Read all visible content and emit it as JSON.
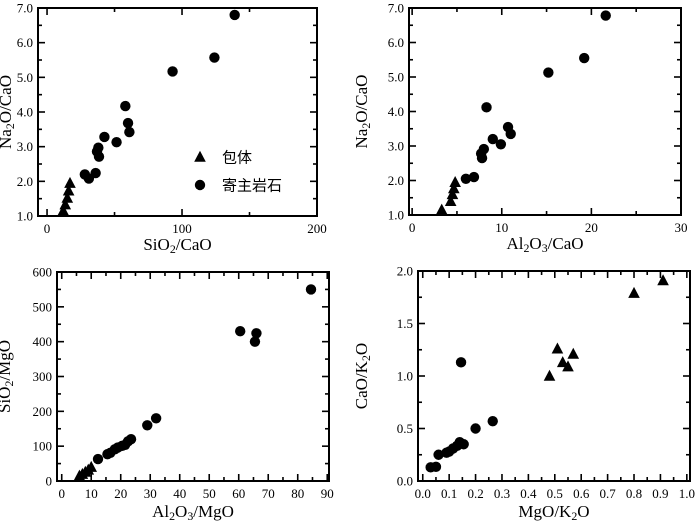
{
  "figure": {
    "background": "#ffffff",
    "marker_color": "#000000",
    "axis_color": "#000000"
  },
  "legend": {
    "position": "inside-top-left-panel",
    "items": [
      {
        "marker": "triangle",
        "label": "包体"
      },
      {
        "marker": "circle",
        "label": "寄主岩石"
      }
    ]
  },
  "chart_data": [
    {
      "id": "top-left",
      "type": "scatter",
      "xlabel": "SiO₂/CaO",
      "ylabel": "Na₂O/CaO",
      "xlim": [
        0,
        200
      ],
      "ylim": [
        1.0,
        7.0
      ],
      "grid": false,
      "legend": true,
      "x_ticks": {
        "values": [
          0,
          100,
          200
        ],
        "labels": [
          "0",
          "100",
          "200"
        ]
      },
      "x_minor_ticks": [
        50,
        150
      ],
      "y_ticks": {
        "values": [
          1,
          2,
          3,
          4,
          5,
          6,
          7
        ],
        "labels": [
          "1.0",
          "2.0",
          "3.0",
          "4.0",
          "5.0",
          "6.0",
          "7.0"
        ]
      },
      "y_minor_ticks": [
        1.5,
        2.5,
        3.5,
        4.5,
        5.5,
        6.5
      ],
      "series": [
        {
          "name": "包体",
          "marker": "triangle",
          "points": [
            [
              12,
              1.15
            ],
            [
              13.5,
              1.33
            ],
            [
              15,
              1.52
            ],
            [
              16,
              1.73
            ],
            [
              17,
              1.95
            ]
          ]
        },
        {
          "name": "寄主岩石",
          "marker": "circle",
          "points": [
            [
              28,
              2.2
            ],
            [
              31,
              2.08
            ],
            [
              36,
              2.24
            ],
            [
              37,
              2.86
            ],
            [
              38,
              2.97
            ],
            [
              38.5,
              2.71
            ],
            [
              42.5,
              3.28
            ],
            [
              51.5,
              3.13
            ],
            [
              58,
              4.17
            ],
            [
              60,
              3.68
            ],
            [
              61,
              3.42
            ],
            [
              93,
              5.17
            ],
            [
              124,
              5.57
            ],
            [
              139,
              6.8
            ]
          ]
        }
      ]
    },
    {
      "id": "top-right",
      "type": "scatter",
      "xlabel": "Al₂O₃/CaO",
      "ylabel": "Na₂O/CaO",
      "xlim": [
        0,
        30
      ],
      "ylim": [
        1.0,
        7.0
      ],
      "grid": false,
      "legend": false,
      "x_ticks": {
        "values": [
          0,
          10,
          20,
          30
        ],
        "labels": [
          "0",
          "10",
          "20",
          "30"
        ]
      },
      "x_minor_ticks": [
        5,
        15,
        25
      ],
      "y_ticks": {
        "values": [
          1,
          2,
          3,
          4,
          5,
          6,
          7
        ],
        "labels": [
          "1.0",
          "2.0",
          "3.0",
          "4.0",
          "5.0",
          "6.0",
          "7.0"
        ]
      },
      "y_minor_ticks": [
        1.5,
        2.5,
        3.5,
        4.5,
        5.5,
        6.5
      ],
      "series": [
        {
          "name": "包体",
          "marker": "triangle",
          "points": [
            [
              3.3,
              1.15
            ],
            [
              4.3,
              1.4
            ],
            [
              4.5,
              1.6
            ],
            [
              4.65,
              1.77
            ],
            [
              4.8,
              1.95
            ]
          ]
        },
        {
          "name": "寄主岩石",
          "marker": "circle",
          "points": [
            [
              6.0,
              2.05
            ],
            [
              6.9,
              2.1
            ],
            [
              7.7,
              2.78
            ],
            [
              7.8,
              2.65
            ],
            [
              8.0,
              2.91
            ],
            [
              8.3,
              4.12
            ],
            [
              9.0,
              3.2
            ],
            [
              9.9,
              3.05
            ],
            [
              10.7,
              3.55
            ],
            [
              11.0,
              3.35
            ],
            [
              15.2,
              5.13
            ],
            [
              19.2,
              5.55
            ],
            [
              21.6,
              6.78
            ]
          ]
        }
      ]
    },
    {
      "id": "bottom-left",
      "type": "scatter",
      "xlabel": "Al₂O₃/MgO",
      "ylabel": "SiO₂/MgO",
      "xlim": [
        0,
        90
      ],
      "ylim": [
        0,
        600
      ],
      "grid": false,
      "legend": false,
      "x_ticks": {
        "values": [
          0,
          10,
          20,
          30,
          40,
          50,
          60,
          70,
          80,
          90
        ],
        "labels": [
          "0",
          "10",
          "20",
          "30",
          "40",
          "50",
          "60",
          "70",
          "80",
          "90"
        ]
      },
      "x_minor_ticks": [
        5,
        15,
        25,
        35,
        45,
        55,
        65,
        75,
        85
      ],
      "y_ticks": {
        "values": [
          0,
          100,
          200,
          300,
          400,
          500,
          600
        ],
        "labels": [
          "0",
          "100",
          "200",
          "300",
          "400",
          "500",
          "600"
        ]
      },
      "y_minor_ticks": [
        50,
        150,
        250,
        350,
        450,
        550
      ],
      "series": [
        {
          "name": "包体",
          "marker": "triangle",
          "points": [
            [
              6,
              15
            ],
            [
              7,
              20
            ],
            [
              8,
              26
            ],
            [
              9,
              32
            ],
            [
              10,
              40
            ]
          ]
        },
        {
          "name": "寄主岩石",
          "marker": "circle",
          "points": [
            [
              12.3,
              63
            ],
            [
              15.5,
              77
            ],
            [
              16.5,
              81
            ],
            [
              18,
              91
            ],
            [
              19,
              96
            ],
            [
              20.5,
              101
            ],
            [
              21.5,
              104
            ],
            [
              22.5,
              114
            ],
            [
              23.5,
              120
            ],
            [
              29,
              160
            ],
            [
              32,
              180
            ],
            [
              60.5,
              430
            ],
            [
              65.5,
              400
            ],
            [
              66,
              424
            ],
            [
              84.5,
              550
            ]
          ]
        }
      ]
    },
    {
      "id": "bottom-right",
      "type": "scatter",
      "xlabel": "MgO/K₂O",
      "ylabel": "CaO/K₂O",
      "xlim": [
        0.0,
        1.0
      ],
      "ylim": [
        0.0,
        2.0
      ],
      "grid": false,
      "legend": false,
      "x_ticks": {
        "values": [
          0,
          0.1,
          0.2,
          0.3,
          0.4,
          0.5,
          0.6,
          0.7,
          0.8,
          0.9,
          1.0
        ],
        "labels": [
          "0.0",
          "0.1",
          "0.2",
          "0.3",
          "0.4",
          "0.5",
          "0.6",
          "0.7",
          "0.8",
          "0.9",
          "1.0"
        ]
      },
      "x_minor_ticks": [
        0.05,
        0.15,
        0.25,
        0.35,
        0.45,
        0.55,
        0.65,
        0.75,
        0.85,
        0.95
      ],
      "y_ticks": {
        "values": [
          0,
          0.5,
          1.0,
          1.5,
          2.0
        ],
        "labels": [
          "0.0",
          "0.5",
          "1.0",
          "1.5",
          "2.0"
        ]
      },
      "y_minor_ticks": [
        0.25,
        0.75,
        1.25,
        1.75
      ],
      "series": [
        {
          "name": "包体",
          "marker": "triangle",
          "points": [
            [
              0.48,
              1.0
            ],
            [
              0.51,
              1.26
            ],
            [
              0.53,
              1.13
            ],
            [
              0.55,
              1.09
            ],
            [
              0.57,
              1.21
            ],
            [
              0.8,
              1.79
            ],
            [
              0.91,
              1.91
            ]
          ]
        },
        {
          "name": "寄主岩石",
          "marker": "circle",
          "points": [
            [
              0.03,
              0.13
            ],
            [
              0.05,
              0.135
            ],
            [
              0.06,
              0.25
            ],
            [
              0.09,
              0.27
            ],
            [
              0.1,
              0.28
            ],
            [
              0.115,
              0.31
            ],
            [
              0.13,
              0.335
            ],
            [
              0.14,
              0.37
            ],
            [
              0.155,
              0.35
            ],
            [
              0.2,
              0.5
            ],
            [
              0.265,
              0.57
            ],
            [
              0.145,
              1.13
            ]
          ]
        }
      ]
    }
  ]
}
